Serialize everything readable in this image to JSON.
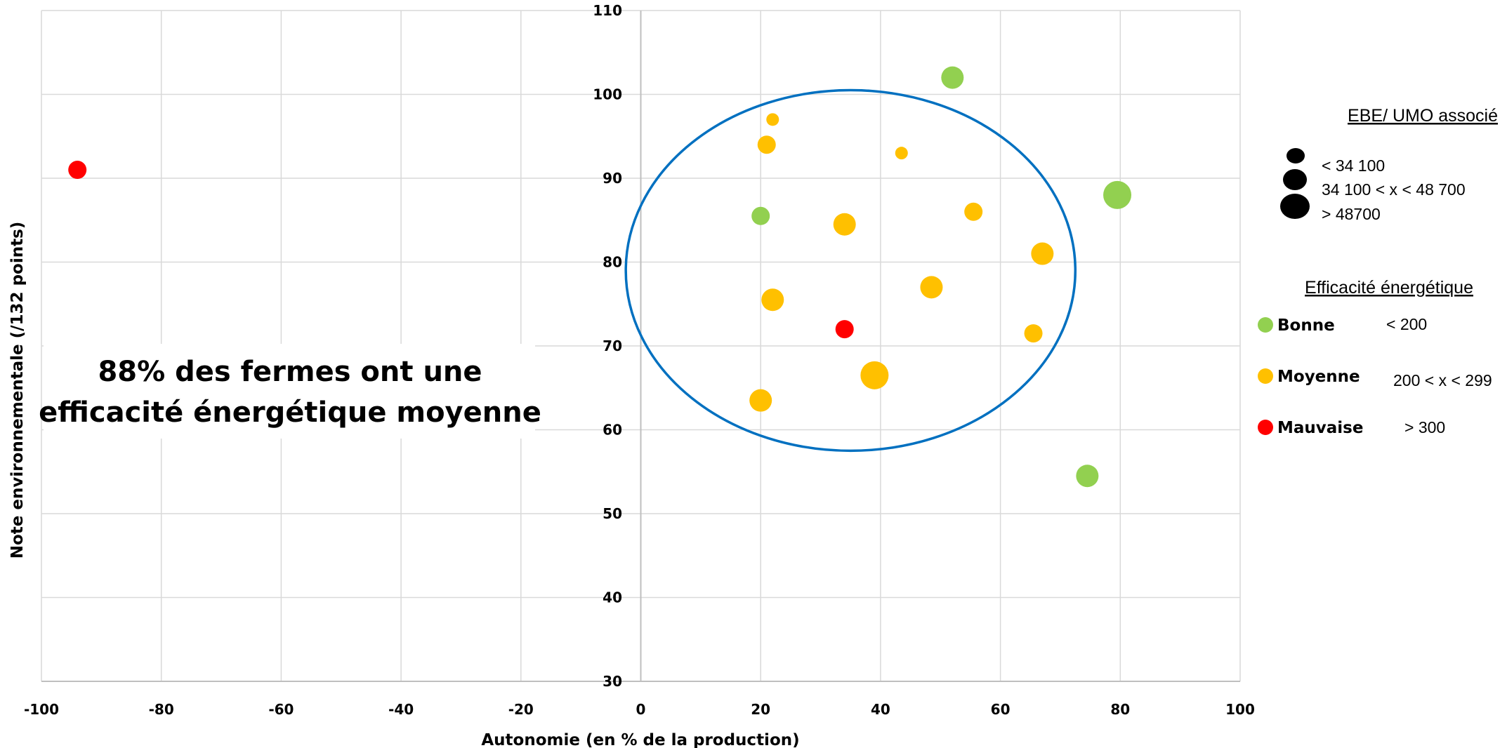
{
  "chart_data": {
    "type": "scatter",
    "xlabel": "Autonomie (en % de la production)",
    "ylabel": "Note environnementale (/132 points)",
    "xlim": [
      -100,
      100
    ],
    "ylim": [
      30,
      110
    ],
    "x_ticks": [
      -100,
      -80,
      -60,
      -40,
      -20,
      0,
      20,
      40,
      60,
      80,
      100
    ],
    "y_ticks": [
      30,
      40,
      50,
      60,
      70,
      80,
      90,
      100,
      110
    ],
    "grid": true,
    "colors": {
      "Bonne": "#92d050",
      "Moyenne": "#ffc000",
      "Mauvaise": "#ff0000",
      "ellipse": "#0070c0",
      "grid": "#d9d9d9"
    },
    "series": [
      {
        "name": "Bonne",
        "color": "#92d050",
        "points": [
          {
            "x": 52,
            "y": 102,
            "size": 2
          },
          {
            "x": 79.5,
            "y": 88,
            "size": 3
          },
          {
            "x": 20,
            "y": 85.5,
            "size": 1
          },
          {
            "x": 74.5,
            "y": 54.5,
            "size": 2
          }
        ]
      },
      {
        "name": "Moyenne",
        "color": "#ffc000",
        "points": [
          {
            "x": 22,
            "y": 97,
            "size": 0
          },
          {
            "x": 21,
            "y": 94,
            "size": 1
          },
          {
            "x": 43.5,
            "y": 93,
            "size": 0
          },
          {
            "x": 55.5,
            "y": 86,
            "size": 1
          },
          {
            "x": 34,
            "y": 84.5,
            "size": 2
          },
          {
            "x": 67,
            "y": 81,
            "size": 2
          },
          {
            "x": 48.5,
            "y": 77,
            "size": 2
          },
          {
            "x": 22,
            "y": 75.5,
            "size": 2
          },
          {
            "x": 65.5,
            "y": 71.5,
            "size": 1
          },
          {
            "x": 39,
            "y": 66.5,
            "size": 3
          },
          {
            "x": 20,
            "y": 63.5,
            "size": 2
          }
        ]
      },
      {
        "name": "Mauvaise",
        "color": "#ff0000",
        "points": [
          {
            "x": -94,
            "y": 91,
            "size": 1
          },
          {
            "x": 34,
            "y": 72,
            "size": 1
          }
        ]
      }
    ],
    "ellipse": {
      "cx": 35,
      "cy": 79,
      "rx": 37.5,
      "ry": 21.5
    },
    "annotation": [
      "88% des fermes ont une",
      "efficacité énergétique moyenne"
    ],
    "legend": {
      "size_title": "EBE/ UMO associé",
      "size_items": [
        "< 34 100",
        "34 100 < x < 48 700",
        "> 48700"
      ],
      "color_title": "Efficacité énergétique",
      "color_items": [
        {
          "label": "Bonne",
          "range": "< 200",
          "color": "#92d050"
        },
        {
          "label": "Moyenne",
          "range": "200 < x < 299",
          "color": "#ffc000"
        },
        {
          "label": "Mauvaise",
          "range": "> 300",
          "color": "#ff0000"
        }
      ]
    }
  }
}
